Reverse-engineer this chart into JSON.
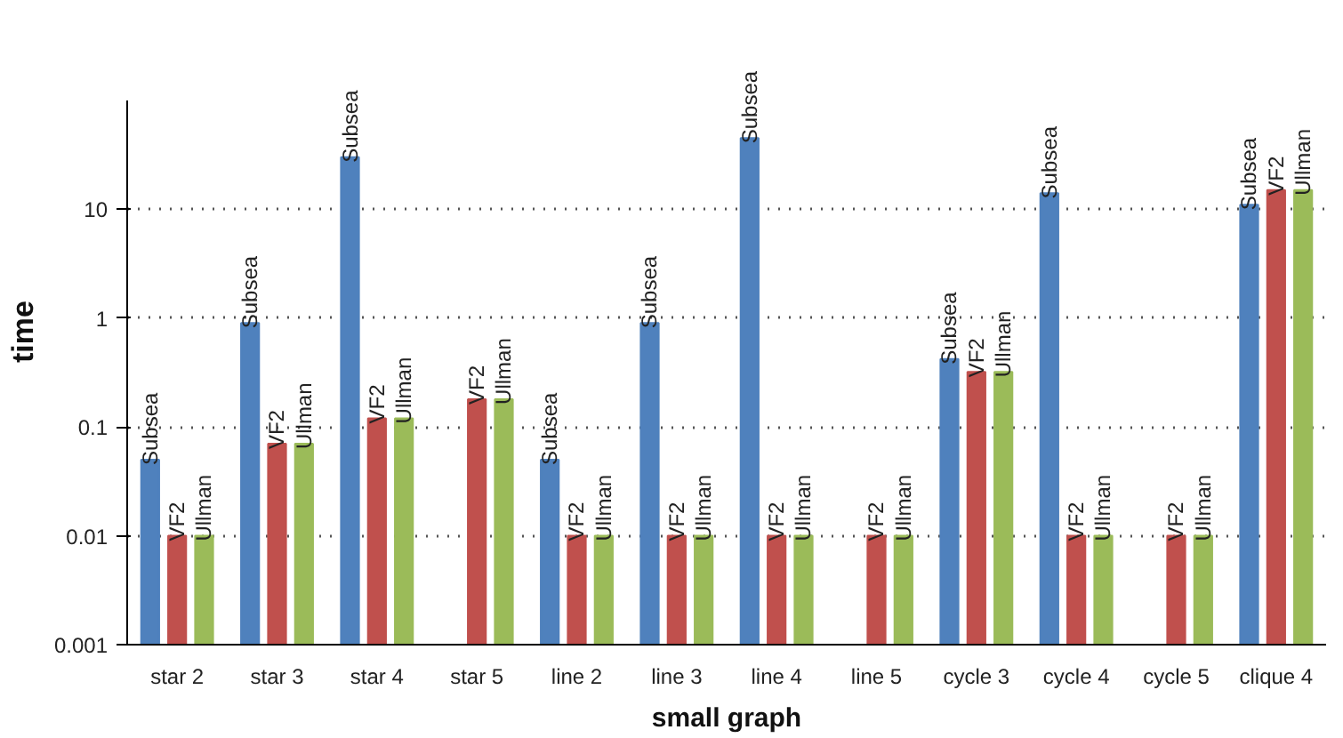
{
  "chart_data": {
    "type": "bar",
    "xlabel": "small graph",
    "ylabel": "time",
    "log": "y",
    "grid": "y",
    "legend": false,
    "categories": [
      "star 2",
      "star 3",
      "star 4",
      "star 5",
      "line 2",
      "line 3",
      "line 4",
      "line 5",
      "cycle 3",
      "cycle 4",
      "cycle 5",
      "clique 4"
    ],
    "ylim": [
      0.001,
      100
    ],
    "yticks": [
      0.001,
      0.01,
      0.1,
      1,
      10
    ],
    "series": [
      {
        "name": "Subsea",
        "color": "#4f81bd",
        "values": [
          0.05,
          0.9,
          30,
          null,
          0.05,
          0.9,
          45,
          null,
          0.42,
          14,
          null,
          11
        ]
      },
      {
        "name": "VF2",
        "color": "#c0504d",
        "values": [
          0.01,
          0.07,
          0.12,
          0.18,
          0.01,
          0.01,
          0.01,
          0.01,
          0.32,
          0.01,
          0.01,
          15
        ]
      },
      {
        "name": "Ullman",
        "color": "#9bbb59",
        "values": [
          0.01,
          0.07,
          0.12,
          0.18,
          0.01,
          0.01,
          0.01,
          0.01,
          0.32,
          0.01,
          0.01,
          15
        ]
      }
    ]
  }
}
